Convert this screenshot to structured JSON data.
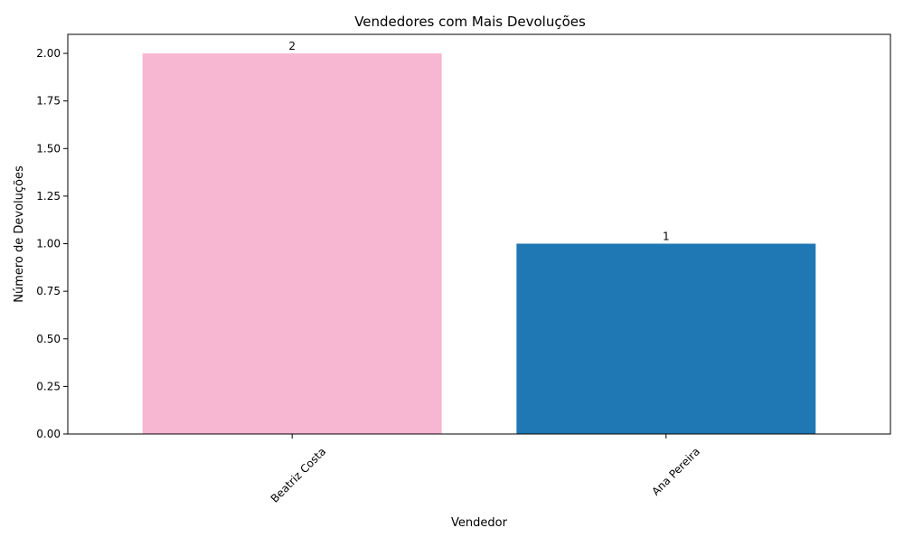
{
  "chart_data": {
    "type": "bar",
    "title": "Vendedores com Mais Devoluções",
    "xlabel": "Vendedor",
    "ylabel": "Número de Devoluções",
    "categories": [
      "Beatriz Costa",
      "Ana Pereira"
    ],
    "values": [
      2,
      1
    ],
    "data_labels": [
      "2",
      "1"
    ],
    "bar_colors": [
      "#f7b6d2",
      "#1f77b4"
    ],
    "ylim": [
      0,
      2.1
    ],
    "yticks": [
      0,
      0.25,
      0.5,
      0.75,
      1.0,
      1.25,
      1.5,
      1.75,
      2.0
    ],
    "ytick_labels": [
      "0.00",
      "0.25",
      "0.50",
      "0.75",
      "1.00",
      "1.25",
      "1.50",
      "1.75",
      "2.00"
    ],
    "xtick_rotation_deg": 45,
    "grid": false,
    "legend": "none"
  }
}
